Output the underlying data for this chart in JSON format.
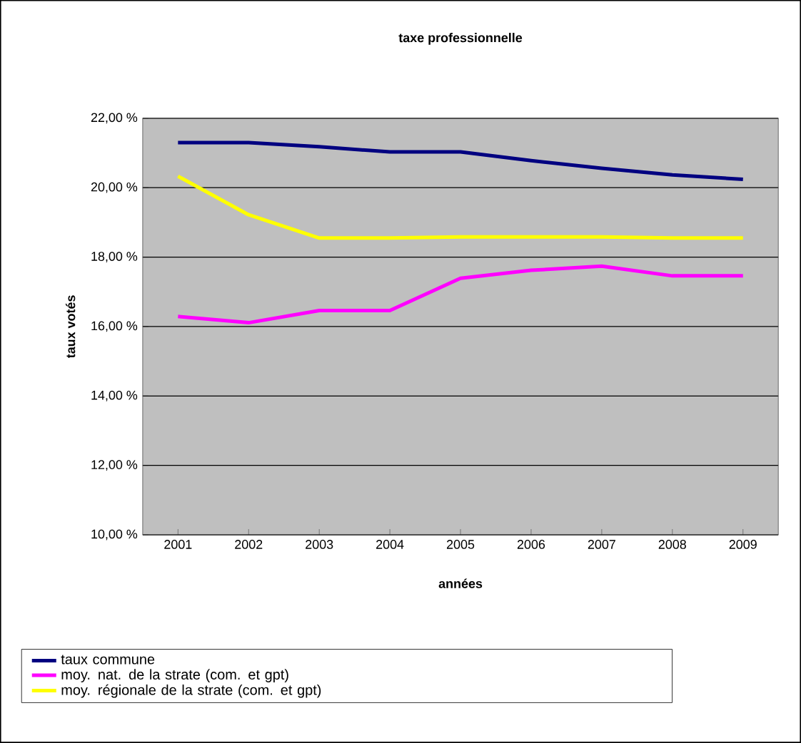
{
  "chart_data": {
    "type": "line",
    "title": "taxe professionnelle",
    "xlabel": "années",
    "ylabel": "taux votés",
    "categories": [
      "2001",
      "2002",
      "2003",
      "2004",
      "2005",
      "2006",
      "2007",
      "2008",
      "2009"
    ],
    "series": [
      {
        "name": "taux commune",
        "color": "#000080",
        "values": [
          21.3,
          21.3,
          21.18,
          21.03,
          21.03,
          20.78,
          20.56,
          20.37,
          20.24
        ]
      },
      {
        "name": "moy. nat. de la strate (com. et gpt)",
        "color": "#ff00ff",
        "values": [
          16.29,
          16.11,
          16.46,
          16.46,
          17.39,
          17.62,
          17.74,
          17.46,
          17.46
        ]
      },
      {
        "name": "moy. régionale de la strate (com. et gpt)",
        "color": "#ffff00",
        "values": [
          20.33,
          19.22,
          18.55,
          18.55,
          18.58,
          18.58,
          18.58,
          18.55,
          18.55
        ]
      }
    ],
    "ylim": [
      10,
      22
    ],
    "yticks": [
      {
        "value": 10,
        "label": "10,00 %"
      },
      {
        "value": 12,
        "label": "12,00 %"
      },
      {
        "value": 14,
        "label": "14,00 %"
      },
      {
        "value": 16,
        "label": "16,00 %"
      },
      {
        "value": 18,
        "label": "18,00 %"
      },
      {
        "value": 20,
        "label": "20,00 %"
      },
      {
        "value": 22,
        "label": "22,00 %"
      }
    ],
    "grid": "y",
    "legend": "bottom",
    "marker": "none",
    "line_style": "solid"
  }
}
